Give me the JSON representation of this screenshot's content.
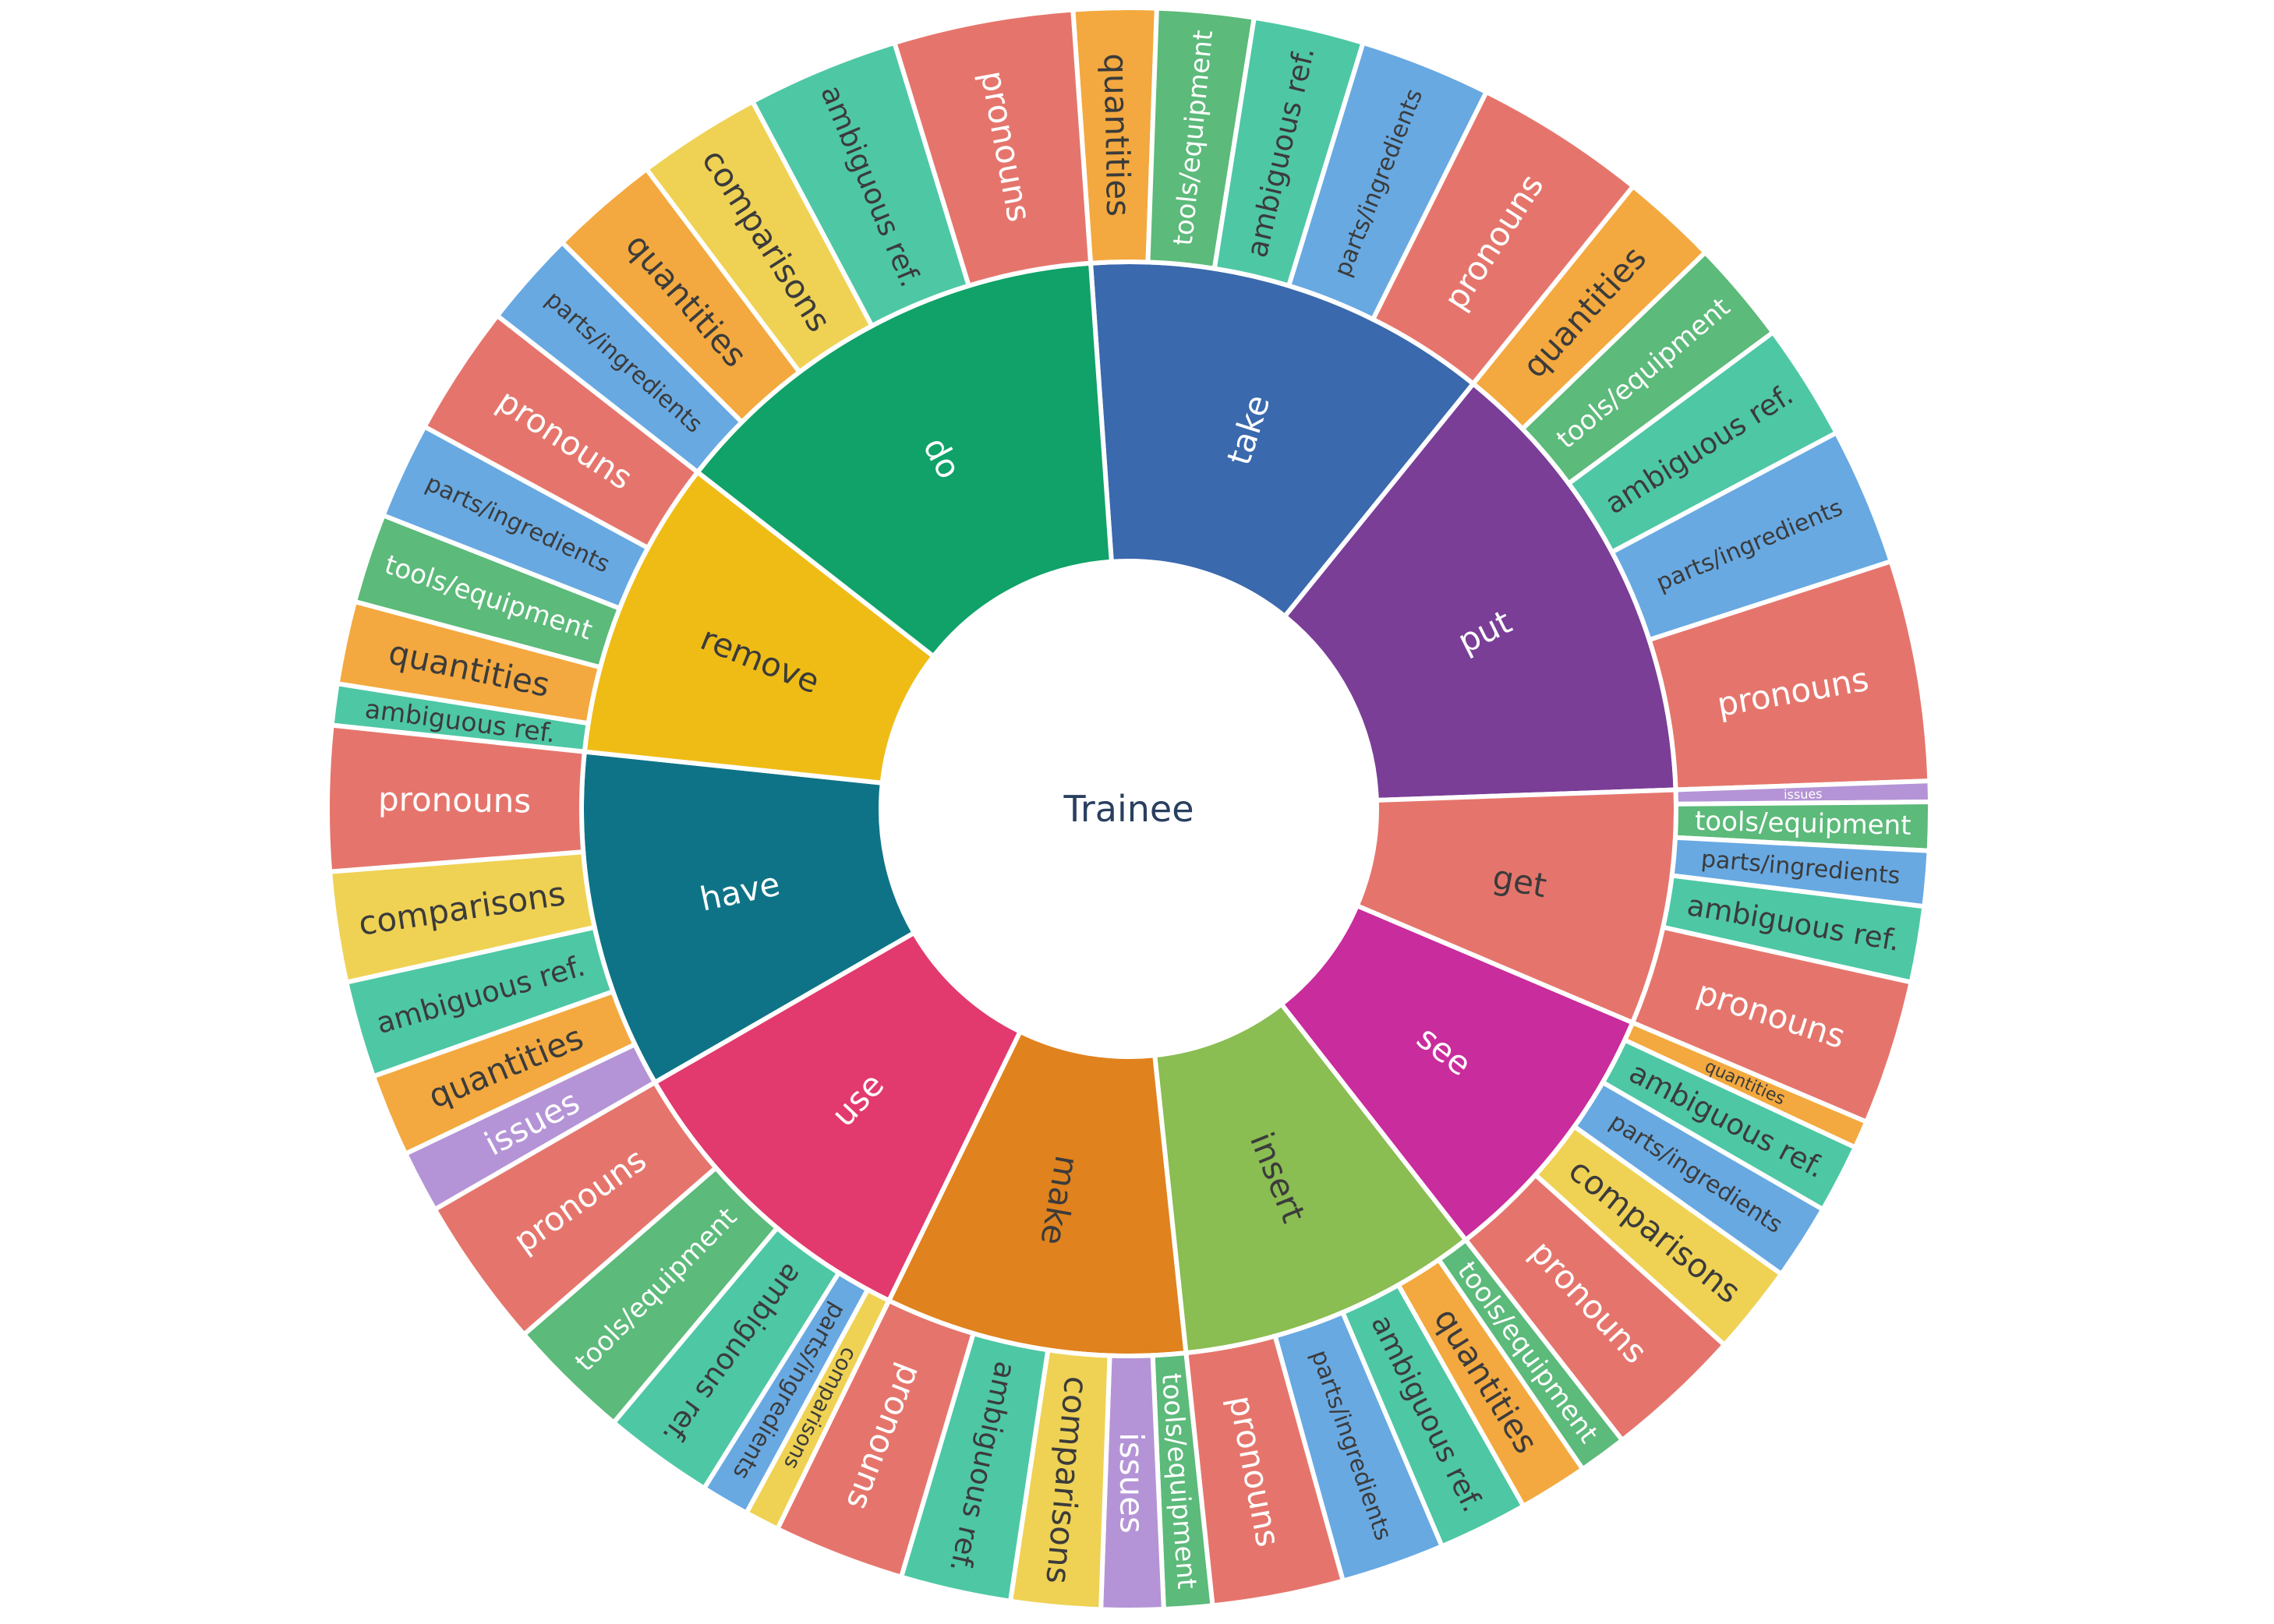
{
  "chart_data": {
    "type": "sunburst",
    "title": "",
    "center_label": "Trainee",
    "rings": [
      "verb (inner)",
      "ambiguity category (outer)"
    ],
    "direction": "clockwise",
    "start_angle_deg": 356,
    "grid": false,
    "legend": false,
    "category_colors": {
      "pronouns": "#E5756C",
      "quantities": "#F3A93F",
      "tools/equipment": "#5CBA7A",
      "ambiguous ref.": "#4EC7A5",
      "parts/ingredients": "#68A9E2",
      "comparisons": "#EFD254",
      "issues": "#B494D6"
    },
    "category_text_colors": {
      "pronouns": "#FFFFFF",
      "quantities": "#3B3B3B",
      "tools/equipment": "#FFFFFF",
      "ambiguous ref.": "#3B3B3B",
      "parts/ingredients": "#3B3B3B",
      "comparisons": "#3B3B3B",
      "issues": "#FFFFFF"
    },
    "center_text_color": "#2A3F5F",
    "parents": [
      {
        "label": "take",
        "color": "#3A69AD",
        "text_color": "#FFFFFF",
        "span_deg": 43,
        "children": [
          {
            "label": "quantities",
            "span_deg": 6
          },
          {
            "label": "tools/equipment",
            "span_deg": 7
          },
          {
            "label": "ambiguous ref.",
            "span_deg": 8
          },
          {
            "label": "parts/ingredients",
            "span_deg": 9.5
          },
          {
            "label": "pronouns",
            "span_deg": 12.5
          }
        ]
      },
      {
        "label": "put",
        "color": "#7A3E97",
        "text_color": "#FFFFFF",
        "span_deg": 49,
        "children": [
          {
            "label": "quantities",
            "span_deg": 7
          },
          {
            "label": "tools/equipment",
            "span_deg": 7.5
          },
          {
            "label": "ambiguous ref.",
            "span_deg": 8.5
          },
          {
            "label": "parts/ingredients",
            "span_deg": 10
          },
          {
            "label": "pronouns",
            "span_deg": 16
          }
        ]
      },
      {
        "label": "get",
        "color": "#E5756C",
        "text_color": "#3B3B3B",
        "span_deg": 25,
        "children": [
          {
            "label": "issues",
            "span_deg": 1.5
          },
          {
            "label": "tools/equipment",
            "span_deg": 3.5
          },
          {
            "label": "parts/ingredients",
            "span_deg": 4
          },
          {
            "label": "ambiguous ref.",
            "span_deg": 5.5
          },
          {
            "label": "pronouns",
            "span_deg": 10.5
          }
        ]
      },
      {
        "label": "see",
        "color": "#C92C9C",
        "text_color": "#FFFFFF",
        "span_deg": 29,
        "children": [
          {
            "label": "quantities",
            "span_deg": 2
          },
          {
            "label": "ambiguous ref.",
            "span_deg": 5
          },
          {
            "label": "parts/ingredients",
            "span_deg": 5.5
          },
          {
            "label": "comparisons",
            "span_deg": 6.5
          },
          {
            "label": "pronouns",
            "span_deg": 10
          }
        ]
      },
      {
        "label": "insert",
        "color": "#8ABD52",
        "text_color": "#3B3B3B",
        "span_deg": 32,
        "children": [
          {
            "label": "tools/equipment",
            "span_deg": 3.5
          },
          {
            "label": "quantities",
            "span_deg": 5
          },
          {
            "label": "ambiguous ref.",
            "span_deg": 6.5
          },
          {
            "label": "parts/ingredients",
            "span_deg": 7.5
          },
          {
            "label": "pronouns",
            "span_deg": 9.5
          }
        ]
      },
      {
        "label": "make",
        "color": "#E0821E",
        "text_color": "#3B3B3B",
        "span_deg": 32,
        "children": [
          {
            "label": "tools/equipment",
            "span_deg": 3.5
          },
          {
            "label": "issues",
            "span_deg": 4.5
          },
          {
            "label": "comparisons",
            "span_deg": 6.5
          },
          {
            "label": "ambiguous ref.",
            "span_deg": 8
          },
          {
            "label": "pronouns",
            "span_deg": 9.5
          }
        ]
      },
      {
        "label": "use",
        "color": "#E23A6E",
        "text_color": "#FFFFFF",
        "span_deg": 34,
        "children": [
          {
            "label": "comparisons",
            "span_deg": 2.5
          },
          {
            "label": "parts/ingredients",
            "span_deg": 3.5
          },
          {
            "label": "ambiguous ref.",
            "span_deg": 8
          },
          {
            "label": "tools/equipment",
            "span_deg": 9
          },
          {
            "label": "pronouns",
            "span_deg": 11
          }
        ]
      },
      {
        "label": "have",
        "color": "#0F7387",
        "text_color": "#FFFFFF",
        "span_deg": 36,
        "children": [
          {
            "label": "issues",
            "span_deg": 4.5
          },
          {
            "label": "quantities",
            "span_deg": 6
          },
          {
            "label": "ambiguous ref.",
            "span_deg": 7
          },
          {
            "label": "comparisons",
            "span_deg": 8
          },
          {
            "label": "pronouns",
            "span_deg": 10.5
          }
        ]
      },
      {
        "label": "remove",
        "color": "#EFBC16",
        "text_color": "#3B3B3B",
        "span_deg": 32,
        "children": [
          {
            "label": "ambiguous ref.",
            "span_deg": 3
          },
          {
            "label": "quantities",
            "span_deg": 6
          },
          {
            "label": "tools/equipment",
            "span_deg": 6.5
          },
          {
            "label": "parts/ingredients",
            "span_deg": 7
          },
          {
            "label": "pronouns",
            "span_deg": 9.5
          }
        ]
      },
      {
        "label": "do",
        "color": "#10A268",
        "text_color": "#FFFFFF",
        "span_deg": 48,
        "children": [
          {
            "label": "parts/ingredients",
            "span_deg": 7
          },
          {
            "label": "quantities",
            "span_deg": 8
          },
          {
            "label": "comparisons",
            "span_deg": 9
          },
          {
            "label": "ambiguous ref.",
            "span_deg": 11
          },
          {
            "label": "pronouns",
            "span_deg": 13
          }
        ]
      }
    ]
  }
}
